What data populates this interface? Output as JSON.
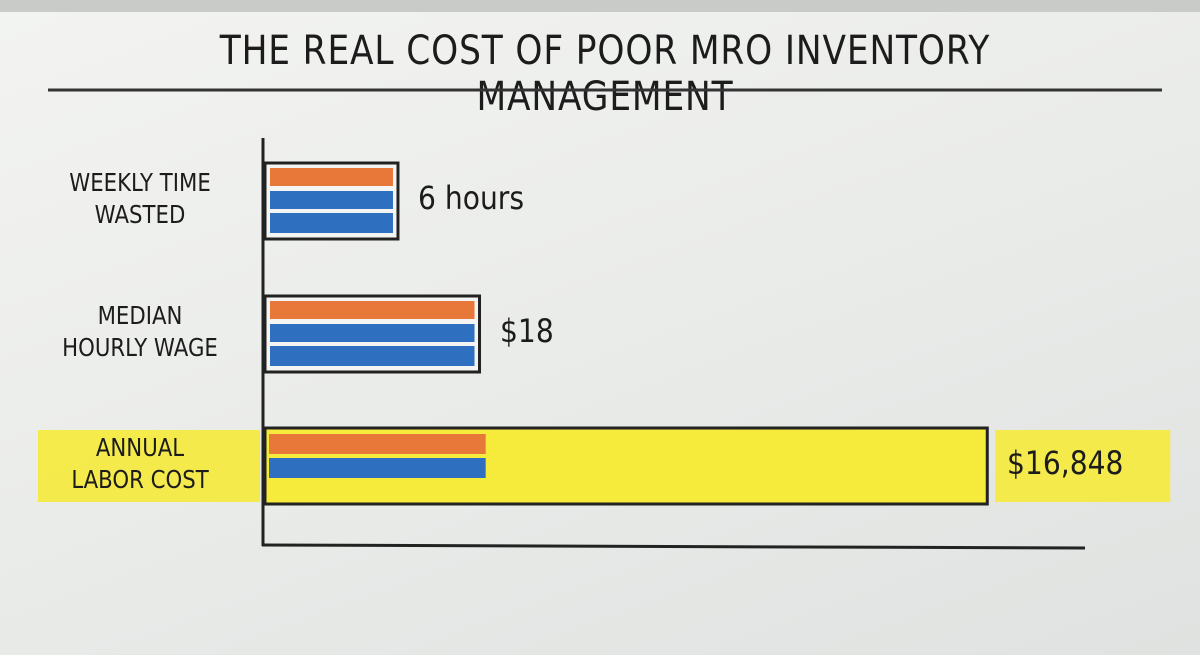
{
  "chart_data": {
    "type": "bar",
    "orientation": "horizontal",
    "title": "THE REAL COST OF POOR MRO INVENTORY MANAGEMENT",
    "categories": [
      "WEEKLY TIME\nWASTED",
      "MEDIAN\nHOURLY WAGE",
      "ANNUAL\nLABOR COST"
    ],
    "values": [
      6,
      18,
      16848
    ],
    "value_labels": [
      "6 hours",
      "$18",
      "$16,848"
    ],
    "log_scale": true,
    "xlim": [
      1,
      20000
    ],
    "stripe_colors": [
      "#e8773a",
      "#2f6fc0"
    ],
    "highlight_color": "#f6ea3a",
    "highlight": [
      false,
      false,
      true
    ]
  }
}
